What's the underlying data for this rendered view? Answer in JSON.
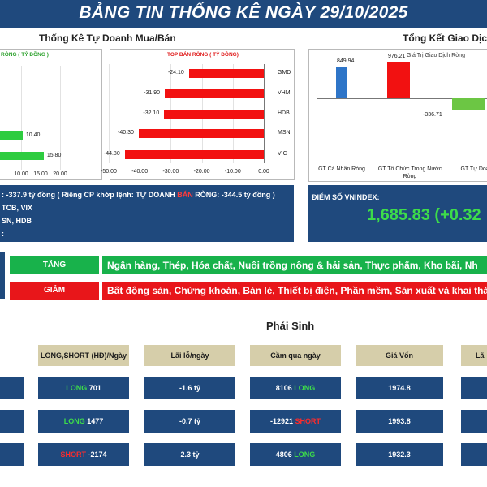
{
  "banner": {
    "title": "BẢNG TIN THỐNG KÊ NGÀY 29/10/2025"
  },
  "sections": {
    "tu_doanh": "Thống Kê Tự Doanh Mua/Bán",
    "tong_ket": "Tổng Kết Giao Dịch",
    "phai_sinh": "Phái Sinh"
  },
  "colors": {
    "navy": "#1f497d",
    "green": "#2ecc40",
    "red": "#f21111",
    "beige": "#d6ceaa",
    "sector_green": "#18b24b",
    "sector_red": "#e8161a"
  },
  "chart_data": [
    {
      "type": "bar",
      "orientation": "horizontal",
      "title": "RÒNG ( TỶ ĐỒNG )",
      "categories": [
        "",
        ""
      ],
      "values": [
        10.4,
        15.8
      ],
      "value_labels": [
        "10.40",
        "15.80"
      ],
      "tick_labels": [
        "10.00",
        "15.00",
        "20.00"
      ],
      "xlim": [
        0,
        20
      ]
    },
    {
      "type": "bar",
      "orientation": "horizontal",
      "title": "TOP BÁN RÒNG ( TỶ ĐỒNG)",
      "categories": [
        "GMD",
        "VHM",
        "HDB",
        "MSN",
        "VIC"
      ],
      "values": [
        -24.1,
        -31.9,
        -32.1,
        -40.3,
        -44.8
      ],
      "value_labels": [
        "-24.10",
        "-31.90",
        "-32.10",
        "-40.30",
        "-44.80"
      ],
      "tick_labels": [
        "-50.00",
        "-40.00",
        "-30.00",
        "-20.00",
        "-10.00",
        "0.00"
      ],
      "xlim": [
        -50,
        0
      ]
    },
    {
      "type": "bar",
      "title": "Giá Trị Giao Dịch Ròng",
      "categories": [
        "GT Cá Nhân Ròng",
        "GT Tổ Chức Trong Nước Ròng",
        "GT Tự Doanh"
      ],
      "values": [
        849.94,
        976.21,
        -336.71
      ],
      "value_labels": [
        "849.94",
        "976.21",
        "-336.71"
      ],
      "colors": [
        "#2e75c8",
        "#f21111",
        "#6cc644"
      ]
    }
  ],
  "info": {
    "line1_a": ": -337.9 tỷ đồng ( Riêng CP khớp lệnh: TỰ DOANH ",
    "line1_hl": "BÁN",
    "line1_b": " RÒNG: -344.5 tỷ đồng )",
    "line2": "TCB, VIX",
    "line3": "SN, HDB",
    "line4": ":"
  },
  "vnindex": {
    "label": "ĐIỂM SỐ VNINDEX:",
    "value": "1,685.83 (+0.32"
  },
  "sectors": {
    "up": {
      "tag": "TĂNG",
      "text": "Ngân hàng, Thép, Hóa chất, Nuôi trồng nông & hải sản, Thực phẩm, Kho bãi, Nh"
    },
    "down": {
      "tag": "GIẢM",
      "text": "Bất động sản, Chứng khoán, Bán lẻ, Thiết bị điện, Phần mềm, Sản xuất và khai thác"
    }
  },
  "derivatives": {
    "headers": [
      "LONG,SHORT (HĐ)/Ngày",
      "Lãi lỗ/ngày",
      "Cầm qua ngày",
      "Giá Vốn",
      "Lã"
    ],
    "rows": [
      {
        "pos_dir": "LONG",
        "pos_num": "701",
        "pnl": "-1.6 tỷ",
        "hold_num": "8106",
        "hold_dir": "LONG",
        "cost": "1974.8"
      },
      {
        "pos_dir": "LONG",
        "pos_num": "1477",
        "pnl": "-0.7 tỷ",
        "hold_num": "-12921",
        "hold_dir": "SHORT",
        "cost": "1993.8"
      },
      {
        "pos_dir": "SHORT",
        "pos_num": "-2174",
        "pnl": "2.3 tỷ",
        "hold_num": "4806",
        "hold_dir": "LONG",
        "cost": "1932.3"
      }
    ]
  }
}
